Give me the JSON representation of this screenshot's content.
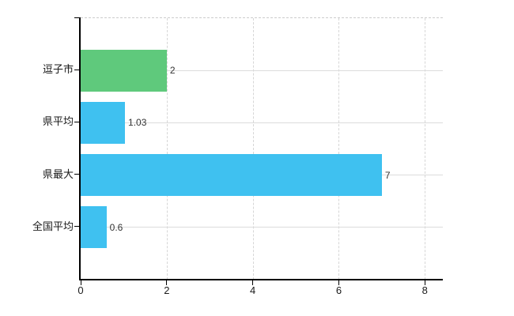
{
  "chart_data": {
    "type": "bar",
    "orientation": "horizontal",
    "title": "",
    "categories": [
      "逗子市",
      "県平均",
      "県最大",
      "全国平均"
    ],
    "values": [
      2,
      1.03,
      7,
      0.6
    ],
    "value_labels": [
      "2",
      "1.03",
      "7",
      "0.6"
    ],
    "bar_colors": [
      "#5fc97c",
      "#3fc1f0",
      "#3fc1f0",
      "#3fc1f0"
    ],
    "xlim": [
      0,
      8
    ],
    "x_ticks": [
      0,
      2,
      4,
      6,
      8
    ],
    "x_tick_labels": [
      "0",
      "2",
      "4",
      "6",
      "8"
    ],
    "xlabel": "",
    "ylabel": "",
    "grid": "on",
    "legend": "none"
  },
  "colors": {
    "bar_green": "#5fc97c",
    "bar_blue": "#3fc1f0",
    "gridline": "#dcdcdc",
    "plot_border": "#cccccc",
    "axis": "#000000",
    "text": "#1a1a1a",
    "value_text": "#333333",
    "background": "#ffffff"
  }
}
